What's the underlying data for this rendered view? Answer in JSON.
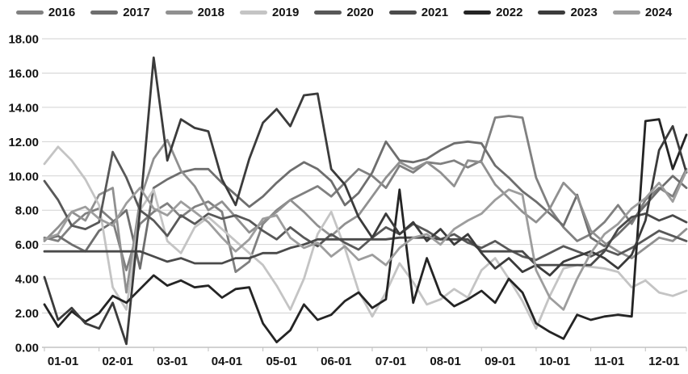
{
  "chart_data": {
    "type": "line",
    "title": "",
    "xlabel": "",
    "ylabel": "",
    "ylim": [
      0,
      18
    ],
    "y_tick_step": 2,
    "y_tick_labels": [
      "0.00",
      "2.00",
      "4.00",
      "6.00",
      "8.00",
      "10.00",
      "12.00",
      "14.00",
      "16.00",
      "18.00"
    ],
    "x_tick_labels": [
      "01-01",
      "02-01",
      "03-01",
      "04-01",
      "05-01",
      "06-01",
      "07-01",
      "08-01",
      "09-01",
      "10-01",
      "11-01",
      "12-01"
    ],
    "x_points_per_month": 4,
    "grid": true,
    "grid_color": "#d2d2d2",
    "axis_line_color": "#a6a6a6",
    "tick_color": "#bfbfbf",
    "axis_text_color": "#131313",
    "legend_position": "top",
    "series": [
      {
        "name": "2016",
        "color": "#808080",
        "values": [
          6.4,
          6.2,
          7.1,
          7.8,
          8.1,
          7.4,
          4.5,
          7.2,
          7.9,
          8.4,
          7.6,
          8.2,
          8.5,
          7.9,
          4.4,
          5.0,
          7.2,
          8.0,
          8.6,
          9.0,
          9.4,
          8.8,
          9.6,
          10.4,
          10.0,
          9.3,
          10.6,
          10.2,
          10.8,
          10.7,
          10.9,
          10.5,
          10.9,
          13.4,
          13.5,
          13.4,
          9.9,
          8.1,
          7.0,
          6.2,
          6.6,
          7.3,
          8.3,
          7.2,
          8.6,
          9.3,
          8.8,
          10.4
        ]
      },
      {
        "name": "2017",
        "color": "#6e6e6e",
        "values": [
          6.3,
          6.5,
          6.0,
          5.6,
          6.8,
          7.3,
          8.0,
          4.6,
          9.3,
          9.8,
          10.2,
          10.4,
          10.4,
          9.6,
          8.9,
          8.2,
          8.8,
          9.6,
          10.3,
          10.8,
          10.4,
          9.7,
          8.3,
          9.0,
          10.2,
          12.0,
          10.9,
          10.8,
          11.0,
          11.5,
          11.9,
          12.0,
          11.9,
          10.6,
          9.9,
          9.1,
          8.5,
          7.8,
          7.1,
          8.9,
          6.4,
          5.9,
          6.6,
          7.4,
          8.3,
          9.2,
          10.0,
          9.3
        ]
      },
      {
        "name": "2018",
        "color": "#909090",
        "values": [
          6.2,
          7.0,
          7.9,
          7.4,
          8.9,
          9.3,
          3.2,
          8.6,
          11.0,
          12.1,
          10.3,
          9.4,
          8.0,
          8.5,
          7.6,
          6.7,
          7.3,
          7.9,
          8.6,
          7.9,
          7.1,
          6.5,
          7.2,
          7.7,
          8.8,
          9.9,
          10.8,
          10.4,
          10.8,
          10.2,
          9.4,
          10.9,
          10.8,
          9.5,
          8.7,
          7.9,
          7.3,
          8.1,
          9.6,
          8.8,
          6.8,
          6.1,
          5.6,
          5.2,
          5.8,
          6.4,
          6.2,
          6.9
        ]
      },
      {
        "name": "2019",
        "color": "#c4c4c4",
        "values": [
          10.7,
          11.7,
          10.9,
          9.8,
          8.3,
          3.5,
          2.2,
          8.0,
          9.2,
          6.2,
          5.5,
          7.0,
          7.6,
          6.9,
          6.2,
          5.5,
          4.8,
          3.6,
          2.2,
          4.0,
          6.6,
          7.9,
          5.8,
          3.3,
          1.8,
          3.2,
          4.9,
          3.8,
          2.5,
          2.8,
          3.4,
          2.9,
          4.5,
          5.2,
          4.0,
          2.7,
          1.1,
          3.0,
          4.6,
          4.8,
          4.7,
          4.6,
          4.4,
          3.5,
          3.9,
          3.2,
          3.0,
          3.3
        ]
      },
      {
        "name": "2020",
        "color": "#585858",
        "values": [
          9.7,
          8.6,
          7.1,
          6.9,
          7.3,
          11.4,
          9.9,
          8.0,
          7.4,
          6.5,
          7.7,
          7.2,
          7.8,
          7.5,
          7.7,
          7.4,
          6.8,
          6.3,
          7.0,
          6.4,
          5.9,
          6.6,
          6.1,
          5.7,
          6.4,
          7.0,
          6.6,
          7.2,
          6.8,
          6.3,
          6.6,
          6.1,
          5.8,
          6.2,
          5.7,
          5.3,
          5.1,
          5.5,
          5.9,
          5.6,
          5.3,
          5.7,
          5.4,
          5.8,
          6.3,
          6.8,
          6.5,
          6.2
        ]
      },
      {
        "name": "2021",
        "color": "#4a4a4a",
        "values": [
          5.6,
          5.6,
          5.6,
          5.6,
          5.6,
          5.6,
          5.6,
          5.6,
          5.3,
          5.0,
          5.2,
          4.9,
          4.9,
          4.9,
          5.2,
          5.2,
          5.5,
          5.5,
          5.8,
          6.0,
          6.3,
          6.3,
          6.3,
          6.3,
          6.3,
          6.3,
          6.4,
          6.4,
          6.4,
          6.3,
          6.3,
          6.3,
          5.6,
          5.6,
          5.6,
          5.6,
          4.8,
          4.8,
          4.8,
          4.8,
          4.8,
          5.6,
          6.9,
          7.6,
          7.8,
          7.4,
          7.7,
          7.3
        ]
      },
      {
        "name": "2022",
        "color": "#242424",
        "values": [
          2.5,
          1.2,
          2.1,
          1.5,
          2.0,
          3.0,
          2.6,
          3.4,
          4.2,
          3.6,
          3.9,
          3.5,
          3.6,
          2.9,
          3.4,
          3.5,
          1.4,
          0.3,
          1.0,
          2.5,
          1.6,
          1.9,
          2.7,
          3.2,
          2.3,
          2.8,
          9.2,
          2.6,
          5.2,
          3.1,
          2.4,
          2.8,
          3.3,
          2.6,
          4.0,
          3.2,
          1.4,
          0.9,
          0.5,
          1.9,
          1.6,
          1.8,
          1.9,
          1.8,
          13.2,
          13.3,
          10.4,
          12.4
        ]
      },
      {
        "name": "2023",
        "color": "#3b3b3b",
        "values": [
          4.1,
          1.6,
          2.3,
          1.4,
          1.1,
          2.6,
          0.2,
          8.0,
          16.9,
          10.9,
          13.3,
          12.8,
          12.6,
          9.8,
          8.3,
          11.0,
          13.1,
          13.9,
          12.9,
          14.7,
          14.8,
          10.4,
          9.5,
          7.6,
          6.4,
          7.8,
          6.6,
          7.3,
          6.2,
          6.9,
          6.0,
          6.6,
          5.5,
          4.6,
          5.2,
          4.4,
          4.8,
          4.2,
          5.0,
          5.3,
          5.6,
          5.2,
          4.6,
          5.4,
          7.4,
          11.5,
          12.9,
          10.2
        ]
      },
      {
        "name": "2024",
        "color": "#9d9d9d",
        "values": [
          6.3,
          6.6,
          7.9,
          8.2,
          7.5,
          7.1,
          8.4,
          9.3,
          8.1,
          7.7,
          8.5,
          7.9,
          7.3,
          6.4,
          5.6,
          6.3,
          7.5,
          7.7,
          6.4,
          5.8,
          6.1,
          5.3,
          5.9,
          5.1,
          5.4,
          4.8,
          5.8,
          6.4,
          6.6,
          6.0,
          6.9,
          7.4,
          7.8,
          8.6,
          9.2,
          8.9,
          4.5,
          2.9,
          2.2,
          4.0,
          5.5,
          6.6,
          7.2,
          8.1,
          8.7,
          9.6,
          8.5,
          10.3
        ]
      }
    ]
  }
}
